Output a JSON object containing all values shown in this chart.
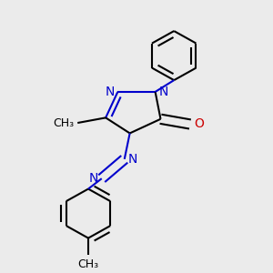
{
  "bg_color": "#ebebeb",
  "bond_color": "#000000",
  "n_color": "#0000cc",
  "o_color": "#cc0000",
  "bond_width": 1.5,
  "font_size": 10,
  "layout": {
    "xlim": [
      0.0,
      1.0
    ],
    "ylim": [
      0.0,
      1.0
    ]
  }
}
